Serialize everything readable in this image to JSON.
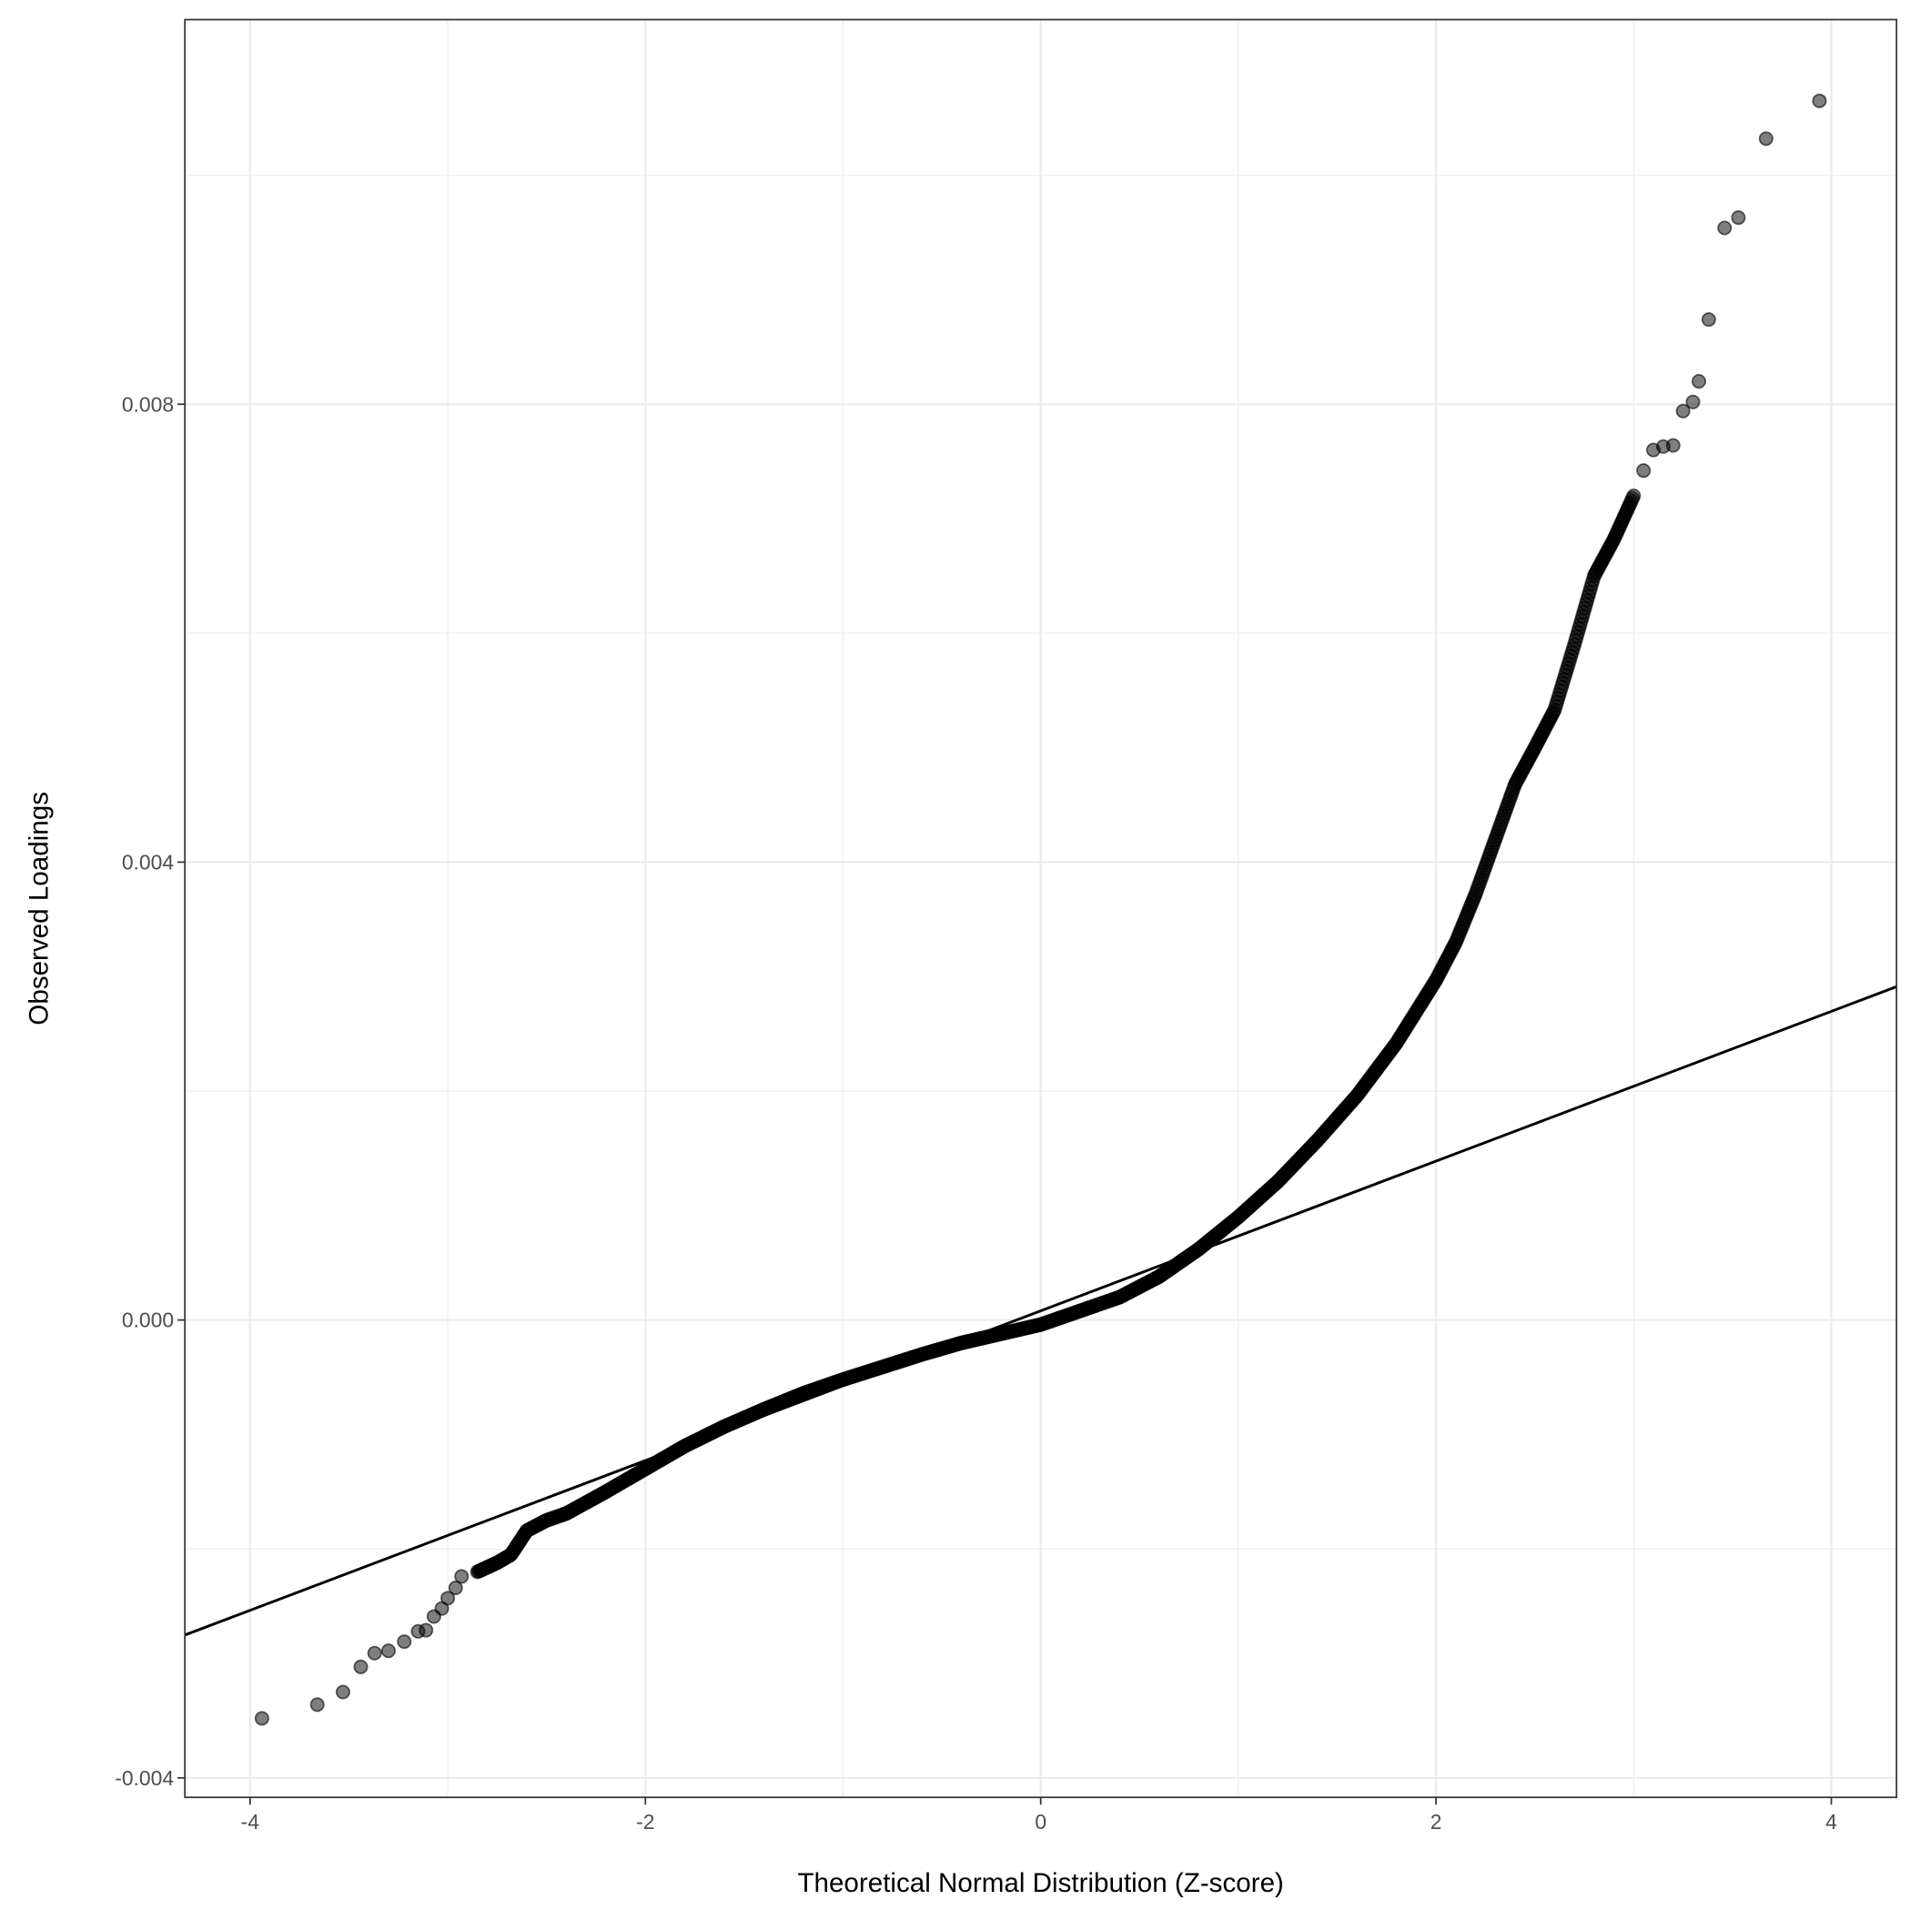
{
  "chart_data": {
    "type": "scatter",
    "subtype": "qq-plot",
    "title": "",
    "xlabel": "Theoretical Normal Distribution (Z-score)",
    "ylabel": "Observed Loadings",
    "xlim": [
      -4.33,
      4.33
    ],
    "ylim": [
      -0.00417,
      0.01136
    ],
    "xticks": [
      -4,
      -2,
      0,
      2,
      4
    ],
    "xtick_labels": [
      "-4",
      "-2",
      "0",
      "2",
      "4"
    ],
    "yticks": [
      -0.004,
      0.0,
      0.004,
      0.008
    ],
    "ytick_labels": [
      "-0.004",
      "0.000",
      "0.004",
      "0.008"
    ],
    "grid": true,
    "legend": "none",
    "point_color": "#000000",
    "point_alpha": 0.5,
    "reference_line": {
      "slope": 0.000654,
      "intercept": 8e-05,
      "color": "#000000"
    },
    "points": [
      [
        -3.94,
        -0.00348
      ],
      [
        -3.66,
        -0.00336
      ],
      [
        -3.53,
        -0.00325
      ],
      [
        -3.44,
        -0.00303
      ],
      [
        -3.37,
        -0.00291
      ],
      [
        -3.3,
        -0.00289
      ],
      [
        -3.22,
        -0.00281
      ],
      [
        -3.15,
        -0.00272
      ],
      [
        -3.11,
        -0.00271
      ],
      [
        -3.07,
        -0.00259
      ],
      [
        -3.03,
        -0.00252
      ],
      [
        -3.0,
        -0.00243
      ],
      [
        -2.96,
        -0.00234
      ],
      [
        -2.93,
        -0.00224
      ],
      [
        -2.85,
        -0.0022
      ],
      [
        -2.75,
        -0.00212
      ],
      [
        -2.68,
        -0.00205
      ],
      [
        -2.6,
        -0.00184
      ],
      [
        -2.5,
        -0.00175
      ],
      [
        -2.4,
        -0.00169
      ],
      [
        -2.2,
        -0.0015
      ],
      [
        -2.0,
        -0.0013
      ],
      [
        -1.8,
        -0.0011
      ],
      [
        -1.6,
        -0.00093
      ],
      [
        -1.4,
        -0.00078
      ],
      [
        -1.2,
        -0.00064
      ],
      [
        -1.0,
        -0.00052
      ],
      [
        -0.8,
        -0.00041
      ],
      [
        -0.6,
        -0.0003
      ],
      [
        -0.4,
        -0.0002
      ],
      [
        -0.2,
        -0.00012
      ],
      [
        0.0,
        -4e-05
      ],
      [
        0.2,
        8e-05
      ],
      [
        0.4,
        0.0002
      ],
      [
        0.6,
        0.00038
      ],
      [
        0.8,
        0.00062
      ],
      [
        1.0,
        0.0009
      ],
      [
        1.2,
        0.00121
      ],
      [
        1.4,
        0.00157
      ],
      [
        1.6,
        0.00196
      ],
      [
        1.8,
        0.00242
      ],
      [
        2.0,
        0.00297
      ],
      [
        2.1,
        0.0033
      ],
      [
        2.2,
        0.00372
      ],
      [
        2.3,
        0.0042
      ],
      [
        2.4,
        0.00468
      ],
      [
        2.5,
        0.005
      ],
      [
        2.6,
        0.00533
      ],
      [
        2.7,
        0.0059
      ],
      [
        2.8,
        0.0065
      ],
      [
        2.9,
        0.00682
      ],
      [
        3.0,
        0.0072
      ],
      [
        3.05,
        0.00742
      ],
      [
        3.1,
        0.0076
      ],
      [
        3.15,
        0.00763
      ],
      [
        3.2,
        0.00764
      ],
      [
        3.25,
        0.00794
      ],
      [
        3.3,
        0.00802
      ],
      [
        3.33,
        0.0082
      ],
      [
        3.38,
        0.00874
      ],
      [
        3.46,
        0.00954
      ],
      [
        3.53,
        0.00963
      ],
      [
        3.67,
        0.01032
      ],
      [
        3.94,
        0.01065
      ]
    ]
  }
}
